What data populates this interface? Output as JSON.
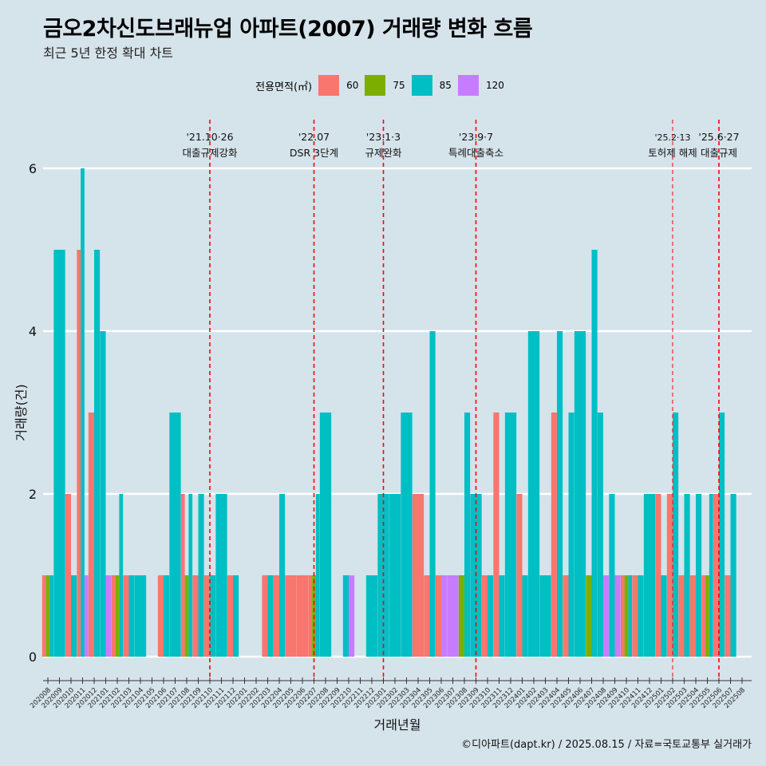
{
  "title": "금오2차신도브래뉴업 아파트(2007) 거래량 변화 흐름",
  "subtitle": "최근 5년 한정 확대 차트",
  "caption": "©디아파트(dapt.kr) / 2025.08.15 / 자료=국토교통부 실거래가",
  "legend": {
    "title": "전용면적(㎡)",
    "items": [
      {
        "label": "60",
        "color": "#F8766D"
      },
      {
        "label": "75",
        "color": "#7CAE00"
      },
      {
        "label": "85",
        "color": "#00BFC4"
      },
      {
        "label": "120",
        "color": "#C77CFF"
      }
    ]
  },
  "chart_data": {
    "type": "bar",
    "title": "금오2차신도브래뉴업 아파트(2007) 거래량 변화 흐름",
    "xlabel": "거래년월",
    "ylabel": "거래량(건)",
    "ylim": [
      -0.25,
      6.5
    ],
    "yticks": [
      0,
      2,
      4,
      6
    ],
    "months": [
      "202008",
      "202009",
      "202010",
      "202011",
      "202012",
      "202101",
      "202102",
      "202103",
      "202104",
      "202105",
      "202106",
      "202107",
      "202108",
      "202109",
      "202110",
      "202111",
      "202112",
      "202201",
      "202202",
      "202203",
      "202204",
      "202205",
      "202206",
      "202207",
      "202208",
      "202209",
      "202210",
      "202211",
      "202212",
      "202301",
      "202302",
      "202303",
      "202304",
      "202305",
      "202306",
      "202307",
      "202308",
      "202309",
      "202310",
      "202311",
      "202312",
      "202401",
      "202402",
      "202403",
      "202404",
      "202405",
      "202406",
      "202407",
      "202408",
      "202409",
      "202410",
      "202411",
      "202412",
      "202501",
      "202502",
      "202503",
      "202504",
      "202505",
      "202506",
      "202507",
      "202508"
    ],
    "series_order": [
      "60",
      "75",
      "85",
      "120"
    ],
    "values": [
      {
        "60": 1,
        "75": 1,
        "85": 1
      },
      {
        "85": 5
      },
      {
        "60": 2,
        "85": 1
      },
      {
        "60": 5,
        "85": 6,
        "120": 1
      },
      {
        "60": 3,
        "85": 5
      },
      {
        "85": 4,
        "120": 1
      },
      {
        "60": 1,
        "75": 1,
        "85": 2
      },
      {
        "60": 1,
        "85": 1
      },
      {
        "85": 1
      },
      {},
      {
        "60": 1,
        "85": 1
      },
      {
        "85": 3
      },
      {
        "60": 2,
        "75": 1,
        "85": 2
      },
      {
        "60": 1,
        "85": 2
      },
      {
        "60": 1,
        "85": 1
      },
      {
        "85": 2
      },
      {
        "60": 1,
        "85": 1
      },
      {},
      {},
      {
        "60": 1,
        "85": 1
      },
      {
        "60": 1,
        "85": 2
      },
      {
        "60": 1
      },
      {
        "60": 1
      },
      {
        "60": 1,
        "75": 1,
        "85": 2
      },
      {
        "85": 3
      },
      {},
      {
        "85": 1,
        "120": 1
      },
      {},
      {
        "85": 1
      },
      {
        "85": 2
      },
      {
        "85": 2
      },
      {
        "85": 3
      },
      {
        "60": 2
      },
      {
        "60": 1,
        "85": 4
      },
      {
        "60": 1,
        "120": 1
      },
      {
        "120": 1
      },
      {
        "75": 1,
        "85": 3
      },
      {
        "85": 2
      },
      {
        "60": 1,
        "85": 1
      },
      {
        "60": 3,
        "85": 1
      },
      {
        "85": 3
      },
      {
        "60": 2,
        "85": 1
      },
      {
        "85": 4
      },
      {
        "85": 1
      },
      {
        "60": 3,
        "85": 4
      },
      {
        "60": 1,
        "85": 3
      },
      {
        "85": 4
      },
      {
        "75": 1,
        "85": 5
      },
      {
        "85": 3,
        "120": 1
      },
      {
        "85": 2,
        "120": 1
      },
      {
        "60": 1,
        "75": 1,
        "85": 1
      },
      {
        "60": 1,
        "85": 1
      },
      {
        "85": 2
      },
      {
        "60": 2,
        "85": 1
      },
      {
        "60": 2,
        "85": 3
      },
      {
        "60": 1,
        "85": 2
      },
      {
        "60": 1,
        "85": 2
      },
      {
        "60": 1,
        "75": 1,
        "85": 2
      },
      {
        "60": 2,
        "85": 3
      },
      {
        "60": 1,
        "85": 2
      },
      {}
    ],
    "events": [
      {
        "month": "202110",
        "date": "'21.10·26",
        "label": "대출규제강화"
      },
      {
        "month": "202207",
        "date": "'22.07",
        "label": "DSR 3단계"
      },
      {
        "month": "202301",
        "date": "'23.1·3",
        "label": "규제완화"
      },
      {
        "month": "202309",
        "date": "'23.9·7",
        "label": "특례대출축소"
      },
      {
        "month": "202502",
        "date": "'25.2·13",
        "label": "토허제 해제"
      },
      {
        "month": "202506",
        "date": "'25.6·27",
        "label": "대출규제"
      }
    ]
  }
}
